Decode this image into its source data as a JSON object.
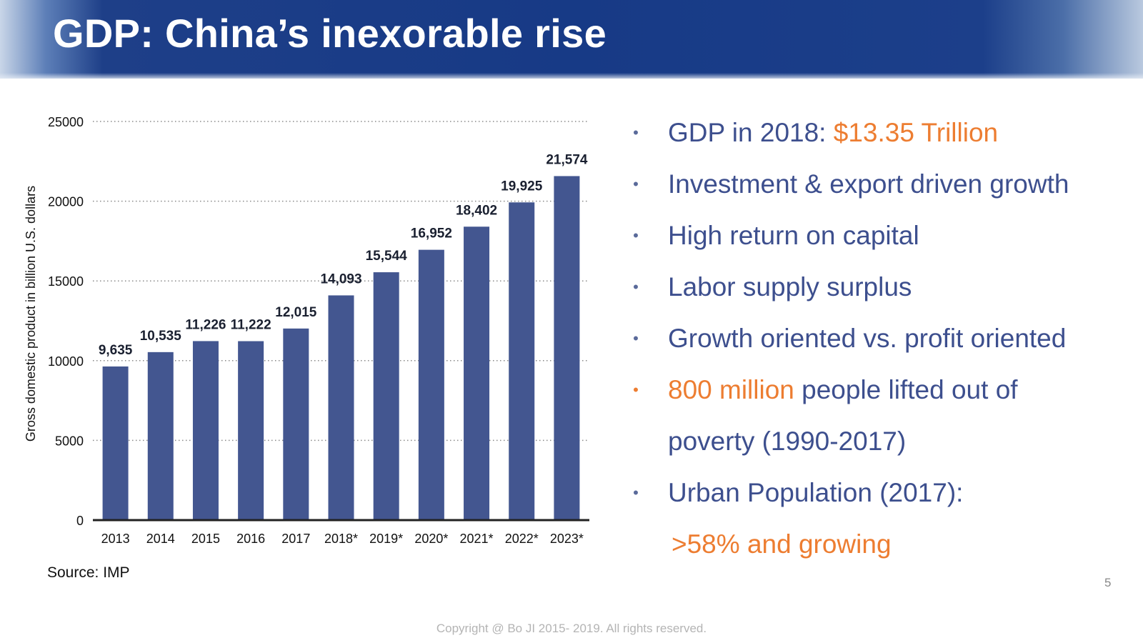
{
  "slide": {
    "title": "GDP: China’s inexorable rise",
    "source": "Source: IMP",
    "page_number": "5",
    "copyright": "Copyright @ Bo JI 2015- 2019. All rights reserved."
  },
  "bullets": [
    {
      "parts": [
        {
          "text": "GDP in 2018: ",
          "accent": false
        },
        {
          "text": "$13.35 Trillion",
          "accent": true
        }
      ]
    },
    {
      "parts": [
        {
          "text": "Investment & export driven growth",
          "accent": false
        }
      ]
    },
    {
      "parts": [
        {
          "text": "High return on capital",
          "accent": false
        }
      ]
    },
    {
      "parts": [
        {
          "text": "Labor supply surplus",
          "accent": false
        }
      ]
    },
    {
      "parts": [
        {
          "text": "Growth oriented vs. profit oriented",
          "accent": false
        }
      ]
    },
    {
      "parts": [
        {
          "text": "800 million",
          "accent": true
        },
        {
          "text": " people lifted out of",
          "accent": false
        }
      ],
      "continuation": [
        {
          "text": "poverty (1990-2017)",
          "accent": false
        }
      ],
      "bullet_accent": true
    },
    {
      "parts": [
        {
          "text": "Urban Population (2017):",
          "accent": false
        }
      ],
      "continuation": [
        {
          "text": ">58% and growing",
          "accent": true
        }
      ]
    }
  ],
  "colors": {
    "bar": "#435690",
    "bullet_text": "#3d4f8e",
    "accent": "#ed7d31",
    "grid": "#8a8a8a",
    "axis": "#222222"
  },
  "chart_data": {
    "type": "bar",
    "title": "",
    "xlabel": "",
    "ylabel": "Gross domestic product in billion U.S. dollars",
    "categories": [
      "2013",
      "2014",
      "2015",
      "2016",
      "2017",
      "2018*",
      "2019*",
      "2020*",
      "2021*",
      "2022*",
      "2023*"
    ],
    "values": [
      9635,
      10535,
      11226,
      11222,
      12015,
      14093,
      15544,
      16952,
      18402,
      19925,
      21574
    ],
    "value_labels": [
      "9,635",
      "10,535",
      "11,226",
      "11,222",
      "12,015",
      "14,093",
      "15,544",
      "16,952",
      "18,402",
      "19,925",
      "21,574"
    ],
    "ylim": [
      0,
      25000
    ],
    "yticks": [
      0,
      5000,
      10000,
      15000,
      20000,
      25000
    ],
    "grid": "dotted horizontal"
  }
}
